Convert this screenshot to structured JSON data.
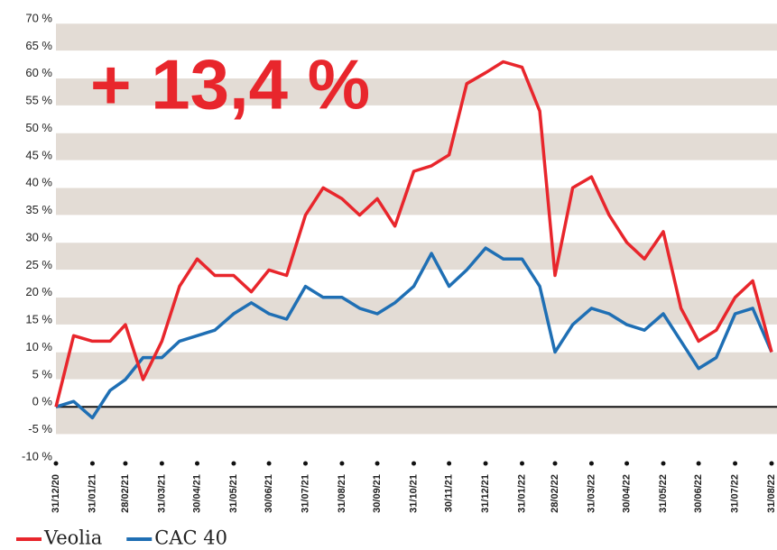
{
  "chart_data": {
    "type": "line",
    "annotation": "+ 13,4 %",
    "x": [
      "31/12/20",
      "15/01/21",
      "31/01/21",
      "15/02/21",
      "28/02/21",
      "15/03/21",
      "31/03/21",
      "15/04/21",
      "30/04/21",
      "15/05/21",
      "31/05/21",
      "15/06/21",
      "30/06/21",
      "15/07/21",
      "31/07/21",
      "15/08/21",
      "31/08/21",
      "15/09/21",
      "30/09/21",
      "15/10/21",
      "31/10/21",
      "15/11/21",
      "30/11/21",
      "15/12/21",
      "31/12/21",
      "15/01/22",
      "31/01/22",
      "15/02/22",
      "28/02/22",
      "15/03/22",
      "31/03/22",
      "15/04/22",
      "30/04/22",
      "15/05/22",
      "31/05/22",
      "15/06/22",
      "30/06/22",
      "15/07/22",
      "31/07/22",
      "15/08/22",
      "31/08/22"
    ],
    "series": [
      {
        "name": "Veolia",
        "color": "#e8262c",
        "values": [
          0,
          13,
          12,
          12,
          15,
          5,
          12,
          22,
          27,
          24,
          24,
          21,
          25,
          24,
          35,
          40,
          38,
          35,
          38,
          33,
          43,
          44,
          46,
          59,
          61,
          63,
          62,
          54,
          24,
          40,
          42,
          35,
          30,
          27,
          32,
          18,
          12,
          14,
          20,
          23,
          10
        ]
      },
      {
        "name": "CAC 40",
        "color": "#1f6fb4",
        "values": [
          0,
          1,
          -2,
          3,
          5,
          9,
          9,
          12,
          13,
          14,
          17,
          19,
          17,
          16,
          22,
          20,
          20,
          18,
          17,
          19,
          22,
          28,
          22,
          25,
          29,
          27,
          27,
          22,
          10,
          15,
          18,
          17,
          15,
          14,
          17,
          12,
          7,
          9,
          17,
          18,
          10
        ]
      }
    ],
    "xlim": [
      "31/12/20",
      "31/08/22"
    ],
    "xticks": [
      "31/12/20",
      "31/01/21",
      "28/02/21",
      "31/03/21",
      "30/04/21",
      "31/05/21",
      "30/06/21",
      "31/07/21",
      "31/08/21",
      "30/09/21",
      "31/10/21",
      "30/11/21",
      "31/12/21",
      "31/01/22",
      "28/02/22",
      "31/03/22",
      "30/04/22",
      "31/05/22",
      "30/06/22",
      "31/07/22",
      "31/08/22"
    ],
    "ylim": [
      -10,
      70
    ],
    "yticks": [
      {
        "value": 70,
        "label": "70 %"
      },
      {
        "value": 65,
        "label": "65 %"
      },
      {
        "value": 60,
        "label": "60 %"
      },
      {
        "value": 55,
        "label": "55 %"
      },
      {
        "value": 50,
        "label": "50 %"
      },
      {
        "value": 45,
        "label": "45 %"
      },
      {
        "value": 40,
        "label": "40 %"
      },
      {
        "value": 35,
        "label": "35 %"
      },
      {
        "value": 30,
        "label": "30 %"
      },
      {
        "value": 25,
        "label": "25 %"
      },
      {
        "value": 20,
        "label": "20 %"
      },
      {
        "value": 15,
        "label": "15 %"
      },
      {
        "value": 10,
        "label": "10 %"
      },
      {
        "value": 5,
        "label": "5 %"
      },
      {
        "value": 0,
        "label": "0 %"
      },
      {
        "value": -5,
        "label": "-5 %"
      },
      {
        "value": -10,
        "label": "-10 %"
      }
    ]
  }
}
